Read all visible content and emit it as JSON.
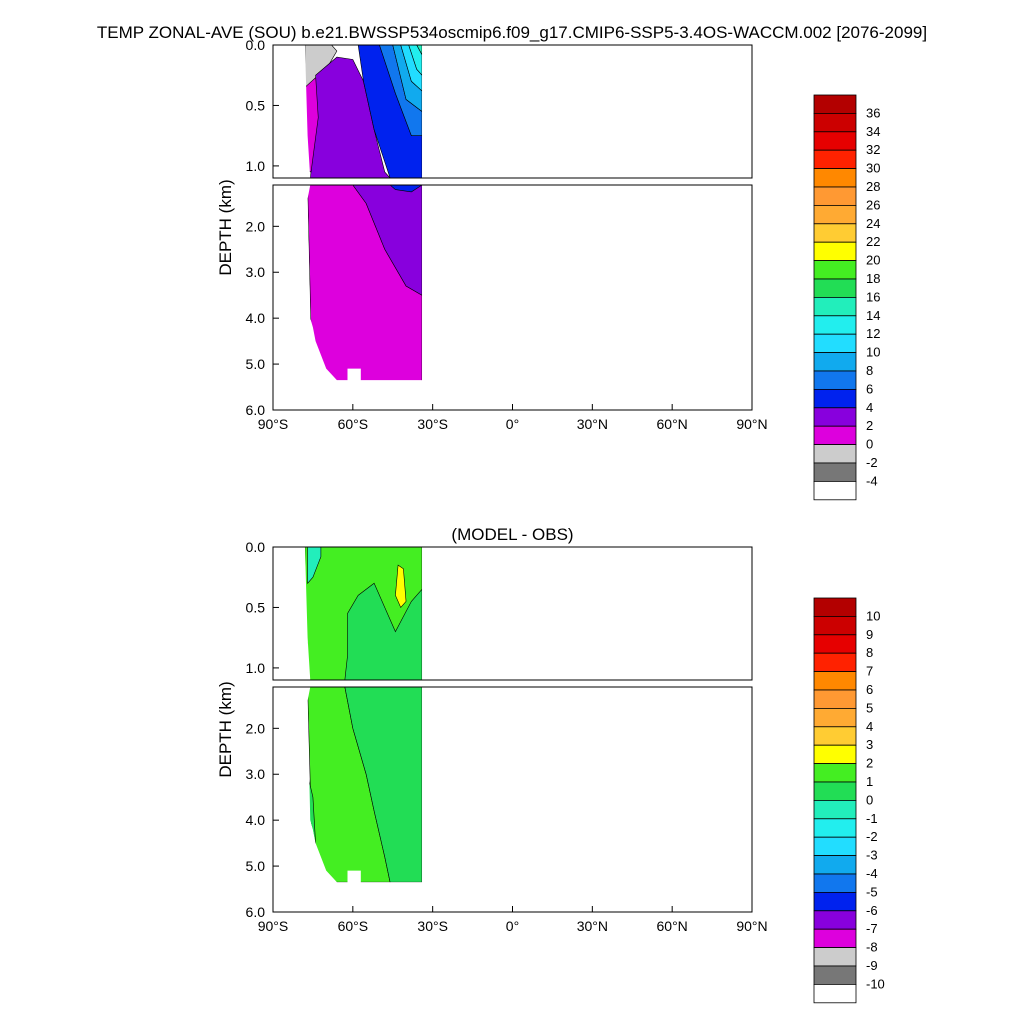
{
  "page_title": "TEMP ZONAL-AVE (SOU) b.e21.BWSSP534oscmip6.f09_g17.CMIP6-SSP5-3.4OS-WACCM.002 [2076-2099]",
  "chart_data": [
    {
      "type": "heatmap",
      "title": "",
      "xlabel": "",
      "ylabel": "DEPTH (km)",
      "x_ticks": [
        "90°S",
        "60°S",
        "30°S",
        "0°",
        "30°N",
        "60°N",
        "90°N"
      ],
      "x_values": [
        -90,
        -60,
        -30,
        0,
        30,
        60,
        90
      ],
      "y_ticks_upper": [
        "0.0",
        "0.5",
        "1.0"
      ],
      "y_ticks_upper_values": [
        0.0,
        0.5,
        1.0
      ],
      "y_ticks_lower": [
        "2.0",
        "3.0",
        "4.0",
        "5.0",
        "6.0"
      ],
      "y_ticks_lower_values": [
        2.0,
        3.0,
        4.0,
        5.0,
        6.0
      ],
      "xlim": [
        -90,
        90
      ],
      "ylim_upper": [
        0.0,
        1.1
      ],
      "ylim_lower": [
        1.1,
        6.0
      ],
      "colorbar_labels": [
        "36",
        "34",
        "32",
        "30",
        "28",
        "26",
        "24",
        "22",
        "20",
        "18",
        "16",
        "14",
        "12",
        "10",
        "8",
        "6",
        "4",
        "2",
        "0",
        "-2",
        "-4"
      ],
      "colorbar_colors": [
        "#b30000",
        "#cc0000",
        "#e60000",
        "#ff2200",
        "#ff8800",
        "#ff9933",
        "#ffaa33",
        "#ffcc33",
        "#ffff00",
        "#44ee22",
        "#22dd55",
        "#22eebb",
        "#22eeee",
        "#22ddff",
        "#11aaee",
        "#1177ee",
        "#0022ee",
        "#8800dd",
        "#dd00dd",
        "#cccccc",
        "#777777",
        "#ffffff"
      ],
      "regions": [
        {
          "name": "gray",
          "color": "#cccccc",
          "pts": [
            [
              -78,
              0
            ],
            [
              -68,
              0
            ],
            [
              -66,
              0.05
            ],
            [
              -70,
              0.2
            ],
            [
              -75,
              0.3
            ],
            [
              -78,
              0.35
            ]
          ]
        },
        {
          "name": "magenta",
          "color": "#dd00dd",
          "pts": [
            [
              -78,
              0.35
            ],
            [
              -73,
              0.25
            ],
            [
              -70,
              0.45
            ],
            [
              -72,
              1.0
            ],
            [
              -76,
              1.05
            ],
            [
              -78,
              1.0
            ]
          ]
        },
        {
          "name": "purple",
          "color": "#8800dd",
          "pts": [
            [
              -74,
              0.25
            ],
            [
              -66,
              0.1
            ],
            [
              -60,
              0.12
            ],
            [
              -56,
              0.3
            ],
            [
              -52,
              0.7
            ],
            [
              -48,
              1.05
            ],
            [
              -46,
              1.1
            ],
            [
              -76,
              1.1
            ],
            [
              -73,
              0.6
            ]
          ]
        },
        {
          "name": "blue",
          "color": "#0022ee",
          "pts": [
            [
              -58,
              0.0
            ],
            [
              -50,
              0.0
            ],
            [
              -44,
              0.4
            ],
            [
              -38,
              0.75
            ],
            [
              -34,
              0.75
            ],
            [
              -34,
              1.1
            ],
            [
              -46,
              1.1
            ],
            [
              -52,
              0.7
            ],
            [
              -56,
              0.3
            ]
          ]
        },
        {
          "name": "blue-mid",
          "color": "#1177ee",
          "pts": [
            [
              -50,
              0.0
            ],
            [
              -45,
              0.0
            ],
            [
              -40,
              0.45
            ],
            [
              -34,
              0.55
            ],
            [
              -34,
              0.75
            ],
            [
              -38,
              0.75
            ],
            [
              -44,
              0.4
            ]
          ]
        },
        {
          "name": "blue-light",
          "color": "#11aaee",
          "pts": [
            [
              -45,
              0.0
            ],
            [
              -42,
              0.0
            ],
            [
              -38,
              0.3
            ],
            [
              -34,
              0.38
            ],
            [
              -34,
              0.55
            ],
            [
              -40,
              0.45
            ]
          ]
        },
        {
          "name": "sky",
          "color": "#22ddff",
          "pts": [
            [
              -42,
              0.0
            ],
            [
              -39,
              0.0
            ],
            [
              -36,
              0.2
            ],
            [
              -34,
              0.25
            ],
            [
              -34,
              0.38
            ],
            [
              -38,
              0.3
            ]
          ]
        },
        {
          "name": "cyan",
          "color": "#22eeee",
          "pts": [
            [
              -39,
              0.0
            ],
            [
              -36,
              0.0
            ],
            [
              -34,
              0.08
            ],
            [
              -34,
              0.25
            ],
            [
              -36,
              0.2
            ]
          ]
        },
        {
          "name": "teal",
          "color": "#22eebb",
          "pts": [
            [
              -36,
              0.0
            ],
            [
              -34,
              0.0
            ],
            [
              -34,
              0.08
            ]
          ]
        },
        {
          "name": "deep-magenta",
          "color": "#dd00dd",
          "pts": [
            [
              -77,
              1.1
            ],
            [
              -75,
              6.0
            ],
            [
              -34,
              6.0
            ],
            [
              -34,
              3.5
            ],
            [
              -40,
              3.3
            ],
            [
              -48,
              2.5
            ],
            [
              -55,
              1.5
            ],
            [
              -60,
              1.1
            ]
          ]
        },
        {
          "name": "deep-purple",
          "color": "#8800dd",
          "pts": [
            [
              -77,
              1.1
            ],
            [
              -60,
              1.1
            ],
            [
              -55,
              1.5
            ],
            [
              -48,
              2.5
            ],
            [
              -40,
              3.3
            ],
            [
              -34,
              3.5
            ],
            [
              -34,
              1.1
            ]
          ]
        },
        {
          "name": "deep-blue",
          "color": "#0022ee",
          "pts": [
            [
              -46,
              1.1
            ],
            [
              -34,
              1.1
            ],
            [
              -38,
              1.25
            ],
            [
              -44,
              1.2
            ]
          ]
        }
      ],
      "mask": [
        [
          -78,
          0
        ],
        [
          -77,
          0.75
        ],
        [
          -76,
          1.1
        ],
        [
          -77,
          1.4
        ],
        [
          -76,
          4.0
        ],
        [
          -75,
          4.2
        ],
        [
          -74,
          4.5
        ],
        [
          -72,
          4.8
        ],
        [
          -70,
          5.1
        ],
        [
          -66,
          5.35
        ],
        [
          -62,
          5.35
        ],
        [
          -62,
          5.1
        ],
        [
          -57,
          5.1
        ],
        [
          -57,
          5.35
        ],
        [
          -34,
          5.35
        ],
        [
          -34,
          0.0
        ]
      ]
    },
    {
      "type": "heatmap",
      "title": "(MODEL - OBS)",
      "xlabel": "",
      "ylabel": "DEPTH (km)",
      "x_ticks": [
        "90°S",
        "60°S",
        "30°S",
        "0°",
        "30°N",
        "60°N",
        "90°N"
      ],
      "x_values": [
        -90,
        -60,
        -30,
        0,
        30,
        60,
        90
      ],
      "y_ticks_upper": [
        "0.0",
        "0.5",
        "1.0"
      ],
      "y_ticks_upper_values": [
        0.0,
        0.5,
        1.0
      ],
      "y_ticks_lower": [
        "2.0",
        "3.0",
        "4.0",
        "5.0",
        "6.0"
      ],
      "y_ticks_lower_values": [
        2.0,
        3.0,
        4.0,
        5.0,
        6.0
      ],
      "xlim": [
        -90,
        90
      ],
      "ylim_upper": [
        0.0,
        1.1
      ],
      "ylim_lower": [
        1.1,
        6.0
      ],
      "colorbar_labels": [
        "10",
        "9",
        "8",
        "7",
        "6",
        "5",
        "4",
        "3",
        "2",
        "1",
        "0",
        "-1",
        "-2",
        "-3",
        "-4",
        "-5",
        "-6",
        "-7",
        "-8",
        "-9",
        "-10"
      ],
      "colorbar_colors": [
        "#b30000",
        "#cc0000",
        "#e60000",
        "#ff2200",
        "#ff8800",
        "#ff9933",
        "#ffaa33",
        "#ffcc33",
        "#ffff00",
        "#44ee22",
        "#22dd55",
        "#22eebb",
        "#22eeee",
        "#22ddff",
        "#11aaee",
        "#1177ee",
        "#0022ee",
        "#8800dd",
        "#dd00dd",
        "#cccccc",
        "#777777",
        "#ffffff"
      ],
      "regions": [
        {
          "name": "lightgreen",
          "color": "#44ee22",
          "pts": [
            [
              -78,
              0
            ],
            [
              -34,
              0
            ],
            [
              -34,
              1.1
            ],
            [
              -78,
              1.1
            ]
          ]
        },
        {
          "name": "green",
          "color": "#22dd55",
          "pts": [
            [
              -62,
              0.9
            ],
            [
              -62,
              0.55
            ],
            [
              -58,
              0.4
            ],
            [
              -52,
              0.3
            ],
            [
              -48,
              0.5
            ],
            [
              -44,
              0.7
            ],
            [
              -38,
              0.45
            ],
            [
              -34,
              0.35
            ],
            [
              -34,
              1.1
            ],
            [
              -63,
              1.1
            ]
          ]
        },
        {
          "name": "cyan-top",
          "color": "#22eebb",
          "pts": [
            [
              -77,
              0
            ],
            [
              -72,
              0
            ],
            [
              -72,
              0.08
            ],
            [
              -75,
              0.25
            ],
            [
              -77,
              0.3
            ]
          ]
        },
        {
          "name": "yellow-spot",
          "color": "#ffff00",
          "pts": [
            [
              -43,
              0.15
            ],
            [
              -41,
              0.18
            ],
            [
              -40,
              0.45
            ],
            [
              -42,
              0.5
            ],
            [
              -44,
              0.4
            ]
          ]
        },
        {
          "name": "orange-edge",
          "color": "#ffcc33",
          "pts": [
            [
              -78,
              0.7
            ],
            [
              -77,
              0.8
            ],
            [
              -77,
              0.9
            ],
            [
              -78,
              0.95
            ]
          ]
        },
        {
          "name": "deep-lightgreen",
          "color": "#44ee22",
          "pts": [
            [
              -77,
              1.1
            ],
            [
              -63,
              1.1
            ],
            [
              -60,
              2.0
            ],
            [
              -55,
              3.0
            ],
            [
              -52,
              3.8
            ],
            [
              -48,
              4.8
            ],
            [
              -46,
              5.35
            ],
            [
              -75,
              5.35
            ]
          ]
        },
        {
          "name": "deep-green",
          "color": "#22dd55",
          "pts": [
            [
              -63,
              1.1
            ],
            [
              -34,
              1.1
            ],
            [
              -34,
              5.35
            ],
            [
              -46,
              5.35
            ],
            [
              -48,
              4.8
            ],
            [
              -52,
              3.8
            ],
            [
              -55,
              3.0
            ],
            [
              -60,
              2.0
            ]
          ]
        },
        {
          "name": "deep-green-edge",
          "color": "#22dd55",
          "pts": [
            [
              -77,
              3.0
            ],
            [
              -75,
              3.5
            ],
            [
              -74,
              4.5
            ],
            [
              -76,
              4.5
            ]
          ]
        }
      ],
      "mask": [
        [
          -78,
          0
        ],
        [
          -77,
          0.75
        ],
        [
          -76,
          1.1
        ],
        [
          -77,
          1.4
        ],
        [
          -76,
          4.0
        ],
        [
          -75,
          4.2
        ],
        [
          -74,
          4.5
        ],
        [
          -72,
          4.8
        ],
        [
          -70,
          5.1
        ],
        [
          -66,
          5.35
        ],
        [
          -62,
          5.35
        ],
        [
          -62,
          5.1
        ],
        [
          -57,
          5.1
        ],
        [
          -57,
          5.35
        ],
        [
          -34,
          5.35
        ],
        [
          -34,
          0.0
        ]
      ]
    }
  ]
}
